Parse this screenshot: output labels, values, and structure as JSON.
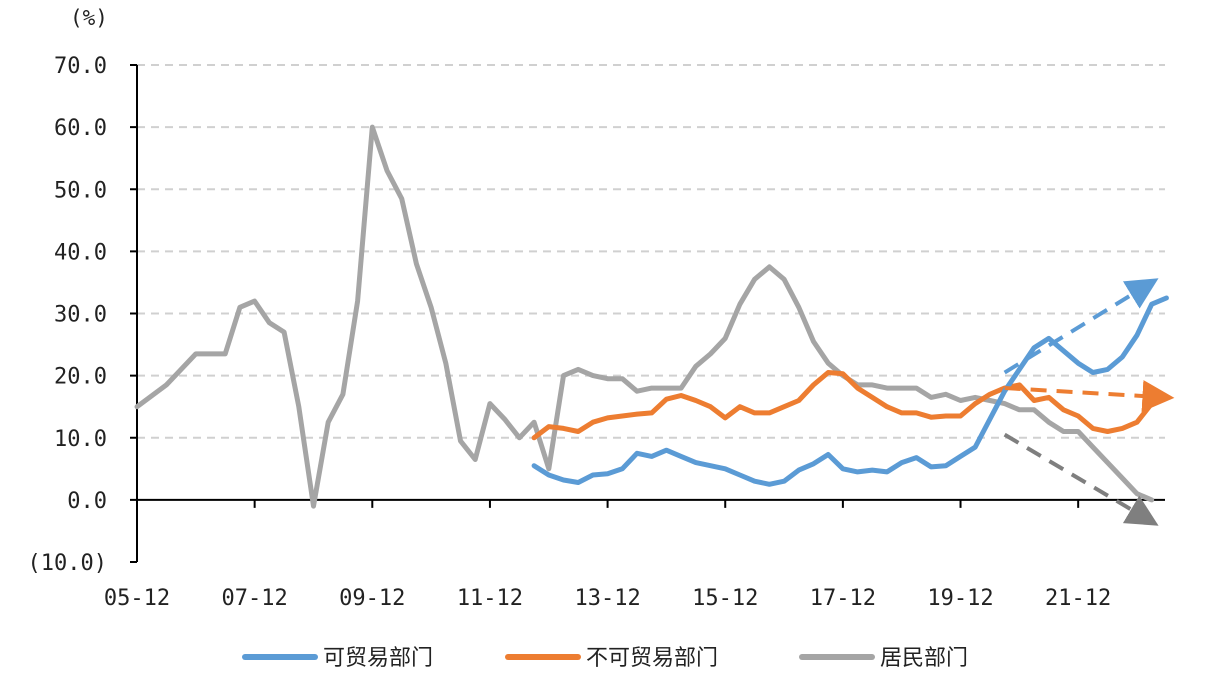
{
  "chart_data": {
    "type": "line",
    "unit_label": "(%)",
    "x_tick_labels": [
      "05-12",
      "07-12",
      "09-12",
      "11-12",
      "13-12",
      "15-12",
      "17-12",
      "19-12",
      "21-12"
    ],
    "y_tick_labels": [
      "70.0",
      "60.0",
      "50.0",
      "40.0",
      "30.0",
      "20.0",
      "10.0",
      "0.0",
      "(10.0)"
    ],
    "ylim": [
      -10,
      70
    ],
    "y_ticks": [
      70,
      60,
      50,
      40,
      30,
      20,
      10,
      0,
      -10
    ],
    "x_range": [
      "2005-12",
      "2022-12"
    ],
    "grid": "horizontal dashed",
    "legend_position": "bottom",
    "colors": {
      "tradable": "#5b9bd5",
      "nontradable": "#ed7d31",
      "household": "#a5a5a5",
      "negative_tick": "#ff0000",
      "arrow_gray": "#7f7f7f"
    },
    "series": [
      {
        "name": "可贸易部门",
        "color": "#5b9bd5",
        "points": [
          [
            "2012-09",
            5.5
          ],
          [
            "2012-12",
            4.0
          ],
          [
            "2013-03",
            3.2
          ],
          [
            "2013-06",
            2.8
          ],
          [
            "2013-09",
            4.0
          ],
          [
            "2013-12",
            4.2
          ],
          [
            "2014-03",
            5.0
          ],
          [
            "2014-06",
            7.5
          ],
          [
            "2014-09",
            7.0
          ],
          [
            "2014-12",
            8.0
          ],
          [
            "2015-03",
            7.0
          ],
          [
            "2015-06",
            6.0
          ],
          [
            "2015-09",
            5.5
          ],
          [
            "2015-12",
            5.0
          ],
          [
            "2016-03",
            4.0
          ],
          [
            "2016-06",
            3.0
          ],
          [
            "2016-09",
            2.5
          ],
          [
            "2016-12",
            3.0
          ],
          [
            "2017-03",
            4.8
          ],
          [
            "2017-06",
            5.8
          ],
          [
            "2017-09",
            7.3
          ],
          [
            "2017-12",
            5.0
          ],
          [
            "2018-03",
            4.5
          ],
          [
            "2018-06",
            4.8
          ],
          [
            "2018-09",
            4.5
          ],
          [
            "2018-12",
            6.0
          ],
          [
            "2019-03",
            6.8
          ],
          [
            "2019-06",
            5.3
          ],
          [
            "2019-09",
            5.5
          ],
          [
            "2019-12",
            7.0
          ],
          [
            "2020-03",
            8.5
          ],
          [
            "2020-06",
            13.0
          ],
          [
            "2020-09",
            17.5
          ],
          [
            "2020-12",
            21.0
          ],
          [
            "2021-03",
            24.5
          ],
          [
            "2021-06",
            26.0
          ],
          [
            "2021-09",
            24.0
          ],
          [
            "2021-12",
            22.0
          ],
          [
            "2022-03",
            20.5
          ],
          [
            "2022-06",
            21.0
          ],
          [
            "2022-09",
            23.0
          ],
          [
            "2022-12",
            26.5
          ],
          [
            "2023-03",
            31.5
          ],
          [
            "2023-06",
            32.5
          ]
        ]
      },
      {
        "name": "不可贸易部门",
        "color": "#ed7d31",
        "points": [
          [
            "2012-09",
            10.0
          ],
          [
            "2012-12",
            11.8
          ],
          [
            "2013-03",
            11.5
          ],
          [
            "2013-06",
            11.0
          ],
          [
            "2013-09",
            12.5
          ],
          [
            "2013-12",
            13.2
          ],
          [
            "2014-03",
            13.5
          ],
          [
            "2014-06",
            13.8
          ],
          [
            "2014-09",
            14.0
          ],
          [
            "2014-12",
            16.2
          ],
          [
            "2015-03",
            16.8
          ],
          [
            "2015-06",
            16.0
          ],
          [
            "2015-09",
            15.0
          ],
          [
            "2015-12",
            13.2
          ],
          [
            "2016-03",
            15.0
          ],
          [
            "2016-06",
            14.0
          ],
          [
            "2016-09",
            14.0
          ],
          [
            "2016-12",
            15.0
          ],
          [
            "2017-03",
            16.0
          ],
          [
            "2017-06",
            18.5
          ],
          [
            "2017-09",
            20.5
          ],
          [
            "2017-12",
            20.3
          ],
          [
            "2018-03",
            18.0
          ],
          [
            "2018-06",
            16.5
          ],
          [
            "2018-09",
            15.0
          ],
          [
            "2018-12",
            14.0
          ],
          [
            "2019-03",
            14.0
          ],
          [
            "2019-06",
            13.3
          ],
          [
            "2019-09",
            13.5
          ],
          [
            "2019-12",
            13.5
          ],
          [
            "2020-03",
            15.5
          ],
          [
            "2020-06",
            17.0
          ],
          [
            "2020-09",
            18.0
          ],
          [
            "2020-12",
            18.5
          ],
          [
            "2021-03",
            16.0
          ],
          [
            "2021-06",
            16.5
          ],
          [
            "2021-09",
            14.5
          ],
          [
            "2021-12",
            13.5
          ],
          [
            "2022-03",
            11.5
          ],
          [
            "2022-06",
            11.0
          ],
          [
            "2022-09",
            11.5
          ],
          [
            "2022-12",
            12.5
          ],
          [
            "2023-03",
            15.5
          ]
        ]
      },
      {
        "name": "居民部门",
        "color": "#a5a5a5",
        "points": [
          [
            "2005-12",
            15.0
          ],
          [
            "2006-06",
            18.5
          ],
          [
            "2006-12",
            23.5
          ],
          [
            "2007-03",
            23.5
          ],
          [
            "2007-06",
            23.5
          ],
          [
            "2007-09",
            31.0
          ],
          [
            "2007-12",
            32.0
          ],
          [
            "2008-03",
            28.5
          ],
          [
            "2008-06",
            27.0
          ],
          [
            "2008-09",
            15.0
          ],
          [
            "2008-12",
            -1.0
          ],
          [
            "2009-03",
            12.5
          ],
          [
            "2009-06",
            17.0
          ],
          [
            "2009-09",
            32.0
          ],
          [
            "2009-12",
            60.0
          ],
          [
            "2010-03",
            53.0
          ],
          [
            "2010-06",
            48.5
          ],
          [
            "2010-09",
            38.0
          ],
          [
            "2010-12",
            31.0
          ],
          [
            "2011-03",
            22.0
          ],
          [
            "2011-06",
            9.5
          ],
          [
            "2011-09",
            6.5
          ],
          [
            "2011-12",
            15.5
          ],
          [
            "2012-03",
            13.0
          ],
          [
            "2012-06",
            10.0
          ],
          [
            "2012-09",
            12.5
          ],
          [
            "2012-12",
            5.0
          ],
          [
            "2013-03",
            20.0
          ],
          [
            "2013-06",
            21.0
          ],
          [
            "2013-09",
            20.0
          ],
          [
            "2013-12",
            19.5
          ],
          [
            "2014-03",
            19.5
          ],
          [
            "2014-06",
            17.5
          ],
          [
            "2014-09",
            18.0
          ],
          [
            "2014-12",
            18.0
          ],
          [
            "2015-03",
            18.0
          ],
          [
            "2015-06",
            21.5
          ],
          [
            "2015-09",
            23.5
          ],
          [
            "2015-12",
            26.0
          ],
          [
            "2016-03",
            31.5
          ],
          [
            "2016-06",
            35.5
          ],
          [
            "2016-09",
            37.5
          ],
          [
            "2016-12",
            35.5
          ],
          [
            "2017-03",
            31.0
          ],
          [
            "2017-06",
            25.5
          ],
          [
            "2017-09",
            22.0
          ],
          [
            "2017-12",
            20.0
          ],
          [
            "2018-03",
            18.5
          ],
          [
            "2018-06",
            18.5
          ],
          [
            "2018-09",
            18.0
          ],
          [
            "2018-12",
            18.0
          ],
          [
            "2019-03",
            18.0
          ],
          [
            "2019-06",
            16.5
          ],
          [
            "2019-09",
            17.0
          ],
          [
            "2019-12",
            16.0
          ],
          [
            "2020-03",
            16.5
          ],
          [
            "2020-06",
            16.0
          ],
          [
            "2020-09",
            15.5
          ],
          [
            "2020-12",
            14.5
          ],
          [
            "2021-03",
            14.5
          ],
          [
            "2021-06",
            12.5
          ],
          [
            "2021-09",
            11.0
          ],
          [
            "2021-12",
            11.0
          ],
          [
            "2022-03",
            8.5
          ],
          [
            "2022-06",
            6.0
          ],
          [
            "2022-09",
            3.5
          ],
          [
            "2022-12",
            1.0
          ],
          [
            "2023-03",
            0.0
          ]
        ]
      }
    ],
    "trend_arrows": [
      {
        "series": "可贸易部门",
        "from": [
          "2020-09",
          20.5
        ],
        "to": [
          "2023-03",
          35.0
        ],
        "color": "#5b9bd5"
      },
      {
        "series": "不可贸易部门",
        "from": [
          "2020-09",
          18.0
        ],
        "to": [
          "2023-06",
          16.5
        ],
        "color": "#ed7d31"
      },
      {
        "series": "居民部门",
        "from": [
          "2020-09",
          10.5
        ],
        "to": [
          "2023-03",
          -3.5
        ],
        "color": "#7f7f7f"
      }
    ]
  }
}
